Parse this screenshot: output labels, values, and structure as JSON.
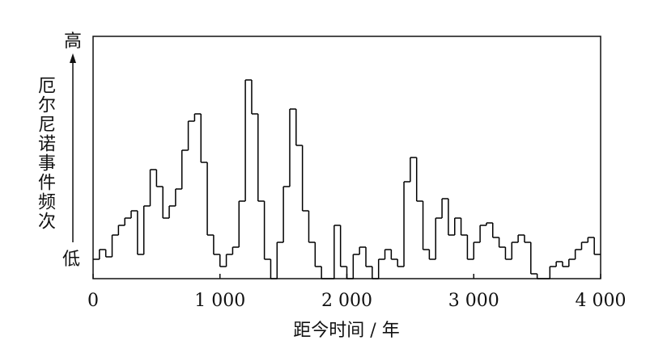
{
  "chart_data": {
    "type": "step",
    "y_label": "厄尔尼诺事件频次",
    "y_high_label": "高",
    "y_low_label": "低",
    "x_label": "距今时间 / 年",
    "color": "#000000",
    "xlim": [
      0,
      4000
    ],
    "xticks": [
      0,
      {
        "value": 1000,
        "label": "1 000"
      },
      {
        "value": 2000,
        "label": "2 000"
      },
      {
        "value": 3000,
        "label": "3 000"
      },
      {
        "value": 4000,
        "label": "4 000"
      }
    ],
    "ylim": [
      0,
      100
    ],
    "x": [
      0,
      50,
      100,
      150,
      200,
      250,
      300,
      350,
      400,
      450,
      500,
      550,
      600,
      650,
      700,
      750,
      800,
      850,
      900,
      950,
      1000,
      1050,
      1100,
      1150,
      1200,
      1250,
      1300,
      1350,
      1400,
      1450,
      1500,
      1550,
      1600,
      1650,
      1700,
      1750,
      1800,
      1850,
      1900,
      1950,
      2000,
      2050,
      2100,
      2150,
      2200,
      2250,
      2300,
      2350,
      2400,
      2450,
      2500,
      2550,
      2600,
      2650,
      2700,
      2750,
      2800,
      2850,
      2900,
      2950,
      3000,
      3050,
      3100,
      3150,
      3200,
      3250,
      3300,
      3350,
      3400,
      3450,
      3500,
      3550,
      3600,
      3650,
      3700,
      3750,
      3800,
      3850,
      3900,
      3950
    ],
    "values": [
      8,
      12,
      9,
      18,
      22,
      25,
      28,
      10,
      30,
      45,
      38,
      25,
      30,
      37,
      53,
      65,
      68,
      48,
      18,
      10,
      5,
      10,
      13,
      32,
      82,
      68,
      32,
      8,
      0,
      15,
      38,
      70,
      55,
      28,
      15,
      5,
      0,
      0,
      22,
      5,
      0,
      10,
      13,
      5,
      0,
      8,
      12,
      8,
      5,
      40,
      50,
      32,
      12,
      8,
      25,
      33,
      18,
      25,
      18,
      8,
      15,
      22,
      23,
      17,
      13,
      8,
      15,
      18,
      15,
      2,
      0,
      0,
      5,
      7,
      5,
      8,
      12,
      15,
      17,
      10
    ]
  }
}
